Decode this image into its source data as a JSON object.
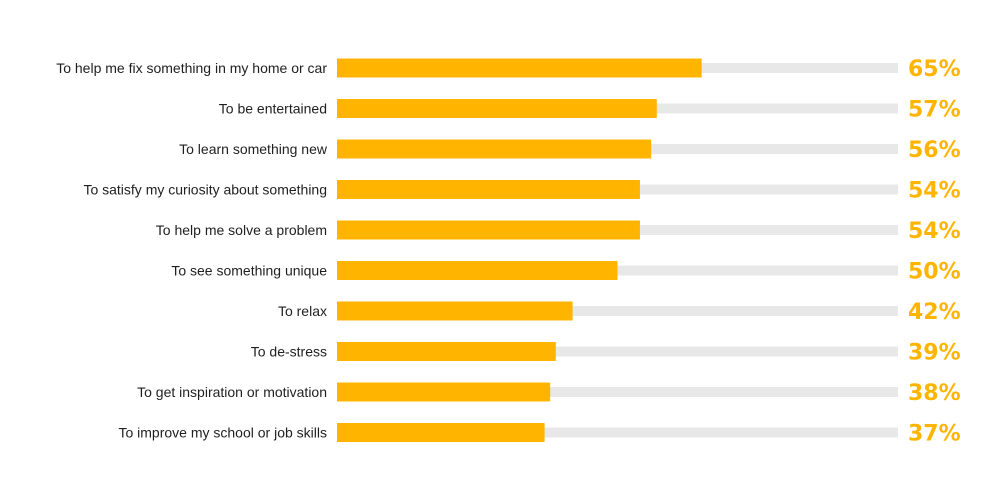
{
  "colors": {
    "bar": "#FFB400",
    "track": "#E8E8E8",
    "value_text": "#FFB400",
    "label_text": "#1F1F1F"
  },
  "chart_data": {
    "type": "bar",
    "orientation": "horizontal",
    "title": "",
    "xlabel": "",
    "ylabel": "",
    "xlim": [
      0,
      100
    ],
    "grid": false,
    "legend": "none",
    "categories": [
      "To help me fix something in my home or car",
      "To be entertained",
      "To learn something new",
      "To satisfy my curiosity about something",
      "To help me solve a problem",
      "To see something unique",
      "To relax",
      "To de-stress",
      "To get inspiration or motivation",
      "To improve my school or job skills"
    ],
    "values": [
      65,
      57,
      56,
      54,
      54,
      50,
      42,
      39,
      38,
      37
    ],
    "value_labels": [
      "65%",
      "57%",
      "56%",
      "54%",
      "54%",
      "50%",
      "42%",
      "39%",
      "38%",
      "37%"
    ]
  }
}
